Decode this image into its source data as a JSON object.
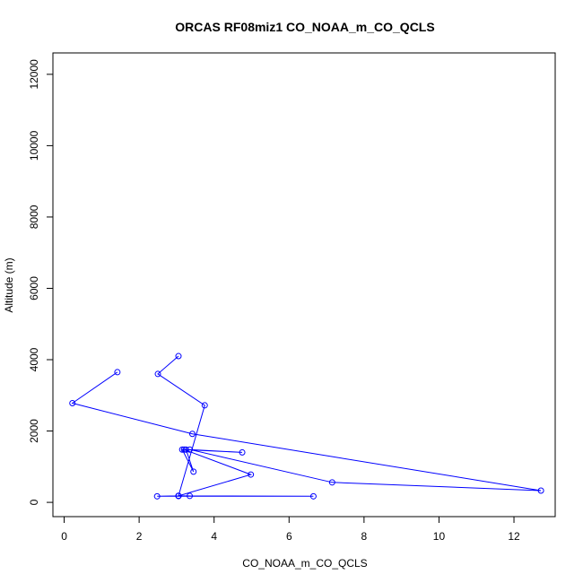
{
  "chart_data": {
    "type": "line",
    "title": "ORCAS RF08miz1 CO_NOAA_m_CO_QCLS",
    "xlabel": "CO_NOAA_m_CO_QCLS",
    "ylabel": "Altitude (m)",
    "xlim": [
      -0.3,
      13.1
    ],
    "ylim": [
      -400,
      12600
    ],
    "xticks": [
      "0",
      "2",
      "4",
      "6",
      "8",
      "10",
      "12"
    ],
    "xtick_values": [
      0,
      2,
      4,
      6,
      8,
      10,
      12
    ],
    "yticks": [
      "0",
      "2000",
      "4000",
      "6000",
      "8000",
      "10000",
      "12000"
    ],
    "ytick_values": [
      0,
      2000,
      4000,
      6000,
      8000,
      10000,
      12000
    ],
    "grid": false,
    "marker": "open-circle",
    "series": [
      {
        "color": "#0000ff",
        "x": [
          3.05,
          2.5,
          3.75,
          3.05,
          3.35,
          3.05,
          3.05,
          6.65,
          2.48,
          3.05,
          4.98,
          3.2,
          3.25,
          3.45,
          3.15,
          4.75,
          3.35,
          7.15,
          12.72,
          3.42,
          0.22,
          1.42
        ],
        "y": [
          4100,
          3600,
          2720,
          180,
          180,
          180,
          180,
          170,
          170,
          180,
          780,
          1480,
          1480,
          860,
          1480,
          1400,
          1480,
          560,
          330,
          1920,
          2780,
          3650
        ]
      }
    ]
  }
}
